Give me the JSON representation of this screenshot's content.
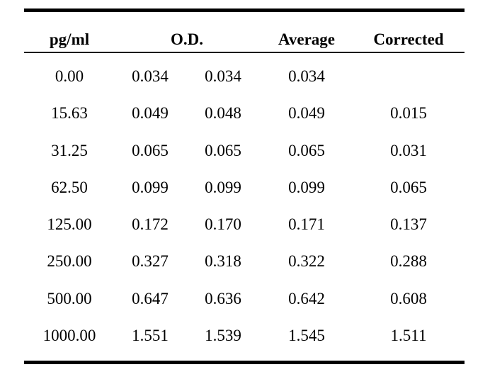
{
  "table": {
    "headers": {
      "conc": "pg/ml",
      "od": "O.D.",
      "avg": "Average",
      "corr": "Corrected"
    },
    "rows": [
      {
        "conc": "0.00",
        "od1": "0.034",
        "od2": "0.034",
        "avg": "0.034",
        "corr": ""
      },
      {
        "conc": "15.63",
        "od1": "0.049",
        "od2": "0.048",
        "avg": "0.049",
        "corr": "0.015"
      },
      {
        "conc": "31.25",
        "od1": "0.065",
        "od2": "0.065",
        "avg": "0.065",
        "corr": "0.031"
      },
      {
        "conc": "62.50",
        "od1": "0.099",
        "od2": "0.099",
        "avg": "0.099",
        "corr": "0.065"
      },
      {
        "conc": "125.00",
        "od1": "0.172",
        "od2": "0.170",
        "avg": "0.171",
        "corr": "0.137"
      },
      {
        "conc": "250.00",
        "od1": "0.327",
        "od2": "0.318",
        "avg": "0.322",
        "corr": "0.288"
      },
      {
        "conc": "500.00",
        "od1": "0.647",
        "od2": "0.636",
        "avg": "0.642",
        "corr": "0.608"
      },
      {
        "conc": "1000.00",
        "od1": "1.551",
        "od2": "1.539",
        "avg": "1.545",
        "corr": "1.511"
      }
    ]
  }
}
